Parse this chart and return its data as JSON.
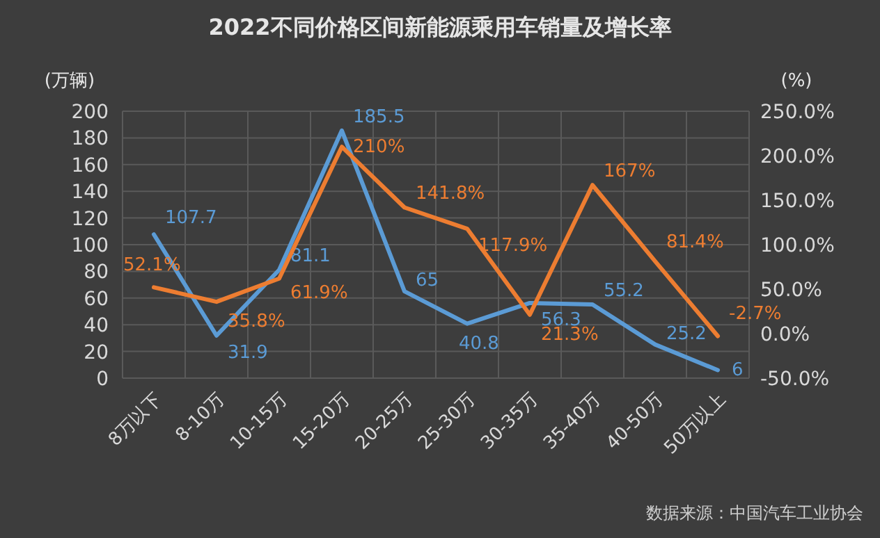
{
  "chart_data": {
    "type": "line",
    "title": "2022不同价格区间新能源乘用车销量及增长率",
    "ylabel": "(万辆)",
    "y2label": "(%)",
    "categories": [
      "8万以下",
      "8-10万",
      "10-15万",
      "15-20万",
      "20-25万",
      "25-30万",
      "30-35万",
      "35-40万",
      "40-50万",
      "50万以上"
    ],
    "series": [
      {
        "color": "#5b9bd5",
        "values": [
          107.7,
          31.9,
          81.1,
          185.5,
          65,
          40.8,
          56.3,
          55.2,
          25.2,
          6
        ],
        "value_labels": [
          "107.7",
          "31.9",
          "81.1",
          "185.5",
          "65",
          "40.8",
          "56.3",
          "55.2",
          "25.2",
          "6"
        ]
      },
      {
        "color": "#ed7d31",
        "axis": "y2",
        "values": [
          52.1,
          35.8,
          61.9,
          210,
          141.8,
          117.9,
          21.3,
          167,
          81.4,
          -2.7
        ],
        "value_labels": [
          "52.1%",
          "35.8%",
          "61.9%",
          "210%",
          "141.8%",
          "117.9%",
          "21.3%",
          "167%",
          "81.4%",
          "-2.7%"
        ]
      }
    ],
    "ylim": [
      0,
      200
    ],
    "yticks": [
      0,
      20,
      40,
      60,
      80,
      100,
      120,
      140,
      160,
      180,
      200
    ],
    "y2lim": [
      -50,
      250
    ],
    "y2ticks": [
      {
        "value": -50,
        "label": "-50.0%"
      },
      {
        "value": 0,
        "label": "0.0%"
      },
      {
        "value": 50,
        "label": "50.0%"
      },
      {
        "value": 100,
        "label": "100.0%"
      },
      {
        "value": 150,
        "label": "150.0%"
      },
      {
        "value": 200,
        "label": "200.0%"
      },
      {
        "value": 250,
        "label": "250.0%"
      }
    ],
    "grid": true,
    "marker": "none",
    "line_style": "solid",
    "annotations": [
      "数据来源：中国汽车工业协会"
    ]
  }
}
